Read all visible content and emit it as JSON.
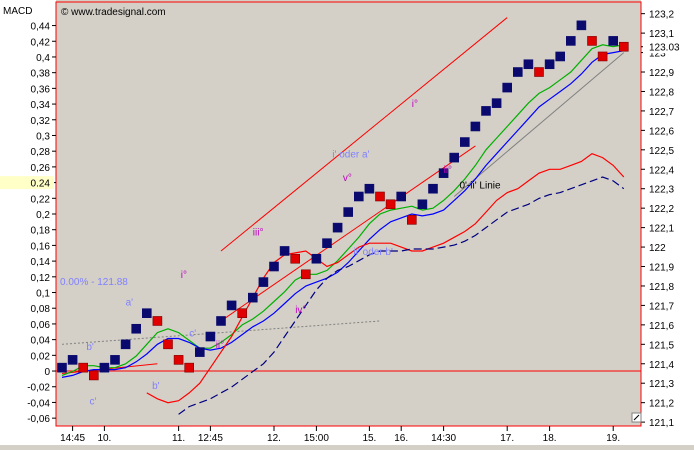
{
  "chart_data": {
    "type": "line",
    "indicator_label": "MACD",
    "copyright": "© www.tradesignal.com",
    "left_axis": {
      "ticks": [
        "0,44",
        "0,42",
        "0,4",
        "0,38",
        "0,36",
        "0,34",
        "0,32",
        "0,3",
        "0,28",
        "0,26",
        "0,24",
        "0,22",
        "0,2",
        "0,18",
        "0,16",
        "0,14",
        "0,12",
        "0,1",
        "0,08",
        "0,06",
        "0,04",
        "0,02",
        "0",
        "-0,02",
        "-0,04",
        "-0,06"
      ],
      "values": [
        0.44,
        0.42,
        0.4,
        0.38,
        0.36,
        0.34,
        0.32,
        0.3,
        0.28,
        0.26,
        0.24,
        0.22,
        0.2,
        0.18,
        0.16,
        0.14,
        0.12,
        0.1,
        0.08,
        0.06,
        0.04,
        0.02,
        0,
        -0.02,
        -0.04,
        -0.06
      ],
      "range": [
        -0.07,
        0.47
      ],
      "current_value": "0.24"
    },
    "right_axis": {
      "ticks": [
        "123,2",
        "123,1",
        "123",
        "122,9",
        "122,8",
        "122,7",
        "122,6",
        "122,5",
        "122,4",
        "122,3",
        "122,2",
        "122,1",
        "122",
        "121,9",
        "121,8",
        "121,7",
        "121,6",
        "121,5",
        "121,4",
        "121,3",
        "121,2",
        "121,1"
      ],
      "values": [
        123.2,
        123.1,
        123.0,
        122.9,
        122.8,
        122.7,
        122.6,
        122.5,
        122.4,
        122.3,
        122.2,
        122.1,
        122.0,
        121.9,
        121.8,
        121.7,
        121.6,
        121.5,
        121.4,
        121.3,
        121.2,
        121.1
      ],
      "range": [
        121.08,
        123.26
      ],
      "current_value": "123.03"
    },
    "x_axis": {
      "ticks": [
        "14:45",
        "10.",
        "11.",
        "12:45",
        "12.",
        "15:00",
        "15.",
        "16.",
        "14:30",
        "17.",
        "18.",
        "19."
      ],
      "positions": [
        1,
        4,
        11,
        14,
        20,
        24,
        29,
        32,
        36,
        42,
        46,
        52
      ]
    },
    "zero_line": 0,
    "label_price": "0.00% - 121.88",
    "bars": [
      {
        "i": 0,
        "open": 121.34,
        "close": 121.38
      },
      {
        "i": 1,
        "open": 121.38,
        "close": 121.42
      },
      {
        "i": 2,
        "open": 121.42,
        "close": 121.38
      },
      {
        "i": 3,
        "open": 121.38,
        "close": 121.34
      },
      {
        "i": 4,
        "open": 121.34,
        "close": 121.38
      },
      {
        "i": 5,
        "open": 121.38,
        "close": 121.42
      },
      {
        "i": 6,
        "open": 121.42,
        "close": 121.5
      },
      {
        "i": 7,
        "open": 121.5,
        "close": 121.58
      },
      {
        "i": 8,
        "open": 121.58,
        "close": 121.66
      },
      {
        "i": 9,
        "open": 121.66,
        "close": 121.62
      },
      {
        "i": 10,
        "open": 121.62,
        "close": 121.5
      },
      {
        "i": 11,
        "open": 121.5,
        "close": 121.42
      },
      {
        "i": 12,
        "open": 121.42,
        "close": 121.38
      },
      {
        "i": 13,
        "open": 121.38,
        "close": 121.46
      },
      {
        "i": 14,
        "open": 121.46,
        "close": 121.54
      },
      {
        "i": 15,
        "open": 121.54,
        "close": 121.62
      },
      {
        "i": 16,
        "open": 121.62,
        "close": 121.7
      },
      {
        "i": 17,
        "open": 121.7,
        "close": 121.66
      },
      {
        "i": 18,
        "open": 121.66,
        "close": 121.74
      },
      {
        "i": 19,
        "open": 121.74,
        "close": 121.82
      },
      {
        "i": 20,
        "open": 121.82,
        "close": 121.9
      },
      {
        "i": 21,
        "open": 121.9,
        "close": 121.98
      },
      {
        "i": 22,
        "open": 121.98,
        "close": 121.94
      },
      {
        "i": 23,
        "open": 121.94,
        "close": 121.86
      },
      {
        "i": 24,
        "open": 121.86,
        "close": 121.94
      },
      {
        "i": 25,
        "open": 121.94,
        "close": 122.02
      },
      {
        "i": 26,
        "open": 122.02,
        "close": 122.1
      },
      {
        "i": 27,
        "open": 122.1,
        "close": 122.18
      },
      {
        "i": 28,
        "open": 122.18,
        "close": 122.26
      },
      {
        "i": 29,
        "open": 122.26,
        "close": 122.3
      },
      {
        "i": 30,
        "open": 122.3,
        "close": 122.26
      },
      {
        "i": 31,
        "open": 122.26,
        "close": 122.22
      },
      {
        "i": 32,
        "open": 122.22,
        "close": 122.26
      },
      {
        "i": 33,
        "open": 122.26,
        "close": 122.14
      },
      {
        "i": 34,
        "open": 122.14,
        "close": 122.22
      },
      {
        "i": 35,
        "open": 122.22,
        "close": 122.3
      },
      {
        "i": 36,
        "open": 122.3,
        "close": 122.38
      },
      {
        "i": 37,
        "open": 122.38,
        "close": 122.46
      },
      {
        "i": 38,
        "open": 122.46,
        "close": 122.54
      },
      {
        "i": 39,
        "open": 122.54,
        "close": 122.62
      },
      {
        "i": 40,
        "open": 122.62,
        "close": 122.7
      },
      {
        "i": 41,
        "open": 122.7,
        "close": 122.74
      },
      {
        "i": 42,
        "open": 122.74,
        "close": 122.82
      },
      {
        "i": 43,
        "open": 122.82,
        "close": 122.9
      },
      {
        "i": 44,
        "open": 122.9,
        "close": 122.94
      },
      {
        "i": 45,
        "open": 122.94,
        "close": 122.9
      },
      {
        "i": 46,
        "open": 122.9,
        "close": 122.94
      },
      {
        "i": 47,
        "open": 122.94,
        "close": 122.98
      },
      {
        "i": 48,
        "open": 122.98,
        "close": 123.06
      },
      {
        "i": 49,
        "open": 123.06,
        "close": 123.14
      },
      {
        "i": 50,
        "open": 123.14,
        "close": 123.06
      },
      {
        "i": 51,
        "open": 123.06,
        "close": 122.98
      },
      {
        "i": 52,
        "open": 122.98,
        "close": 123.06
      },
      {
        "i": 53,
        "open": 123.06,
        "close": 123.03
      }
    ],
    "series": [
      {
        "color": "#00b000",
        "dash": "",
        "y": [
          121.34,
          121.36,
          121.39,
          121.39,
          121.38,
          121.38,
          121.4,
          121.44,
          121.5,
          121.56,
          121.58,
          121.56,
          121.52,
          121.48,
          121.48,
          121.51,
          121.55,
          121.6,
          121.63,
          121.67,
          121.72,
          121.77,
          121.83,
          121.86,
          121.86,
          121.88,
          121.93,
          121.99,
          122.05,
          122.12,
          122.17,
          122.19,
          122.2,
          122.21,
          122.19,
          122.2,
          122.24,
          122.29,
          122.35,
          122.42,
          122.5,
          122.56,
          122.62,
          122.68,
          122.74,
          122.79,
          122.82,
          122.86,
          122.9,
          122.96,
          123.02,
          123.04,
          123.03,
          123.04
        ]
      },
      {
        "color": "#0000ff",
        "dash": "",
        "y": [
          121.33,
          121.34,
          121.36,
          121.37,
          121.37,
          121.37,
          121.38,
          121.41,
          121.45,
          121.5,
          121.53,
          121.53,
          121.51,
          121.48,
          121.47,
          121.48,
          121.51,
          121.55,
          121.59,
          121.62,
          121.66,
          121.71,
          121.76,
          121.8,
          121.82,
          121.84,
          121.87,
          121.92,
          121.98,
          122.04,
          122.09,
          122.13,
          122.15,
          122.17,
          122.16,
          122.17,
          122.19,
          122.24,
          122.29,
          122.35,
          122.42,
          122.48,
          122.54,
          122.6,
          122.66,
          122.72,
          122.76,
          122.8,
          122.84,
          122.89,
          122.95,
          122.99,
          123.0,
          123.01
        ]
      },
      {
        "color": "#ff0000",
        "dash": "",
        "y": [
          null,
          null,
          null,
          null,
          null,
          null,
          null,
          null,
          121.25,
          121.22,
          121.2,
          121.21,
          121.25,
          121.3,
          121.38,
          121.46,
          121.54,
          121.64,
          121.74,
          121.84,
          121.92,
          121.96,
          121.97,
          121.98,
          121.94,
          121.9,
          121.92,
          121.96,
          122.0,
          122.02,
          122.02,
          122.02,
          122.0,
          121.98,
          121.98,
          122.0,
          122.02,
          122.05,
          122.08,
          122.12,
          122.18,
          122.24,
          122.28,
          122.3,
          122.34,
          122.38,
          122.4,
          122.4,
          122.42,
          122.44,
          122.48,
          122.46,
          122.42,
          122.36
        ]
      },
      {
        "color": "#000080",
        "dash": "8 4",
        "y": [
          null,
          null,
          null,
          null,
          null,
          null,
          null,
          null,
          null,
          null,
          null,
          121.14,
          121.18,
          121.2,
          121.22,
          121.25,
          121.28,
          121.32,
          121.36,
          121.4,
          121.46,
          121.54,
          121.62,
          121.7,
          121.78,
          121.84,
          121.88,
          121.9,
          121.93,
          121.96,
          121.98,
          121.98,
          121.98,
          121.99,
          121.99,
          121.99,
          122.0,
          122.01,
          122.03,
          122.06,
          122.1,
          122.14,
          122.18,
          122.2,
          122.22,
          122.25,
          122.27,
          122.28,
          122.3,
          122.32,
          122.34,
          122.36,
          122.34,
          122.3
        ]
      }
    ],
    "lines": [
      {
        "color": "#ff0000",
        "from": [
          15,
          121.98
        ],
        "to": [
          42,
          123.18
        ]
      },
      {
        "color": "#ff0000",
        "from": [
          15,
          121.62
        ],
        "to": [
          39,
          122.52
        ]
      },
      {
        "color": "#808080",
        "from": [
          37,
          122.26
        ],
        "to": [
          53,
          123.0
        ]
      },
      {
        "color": "#808080",
        "dash": "2 2",
        "from": [
          0,
          121.5
        ],
        "to": [
          30,
          121.62
        ]
      },
      {
        "color": "#ff0000",
        "from": [
          0,
          121.35
        ],
        "to": [
          9,
          121.4
        ]
      }
    ],
    "annotations": [
      {
        "text": "iii°",
        "color": "#c000c0",
        "x": 46.5,
        "y": 123.28
      },
      {
        "text": "i°",
        "color": "#c000c0",
        "x": 33.0,
        "y": 122.72
      },
      {
        "text": "i' oder a'",
        "color": "#8080ff",
        "x": 25.5,
        "y": 122.46
      },
      {
        "text": "v°",
        "color": "#c000c0",
        "x": 26.5,
        "y": 122.34
      },
      {
        "text": "ii°",
        "color": "#c000c0",
        "x": 36.0,
        "y": 122.38
      },
      {
        "text": "0'-ii' Linie",
        "color": "#000000",
        "x": 37.5,
        "y": 122.3
      },
      {
        "text": "iii°",
        "color": "#c000c0",
        "x": 18.0,
        "y": 122.06
      },
      {
        "text": "ii' oder b'",
        "color": "#8080ff",
        "x": 27.5,
        "y": 121.96
      },
      {
        "text": "i°",
        "color": "#c000c0",
        "x": 11.2,
        "y": 121.84
      },
      {
        "text": "iv°",
        "color": "#c000c0",
        "x": 22.0,
        "y": 121.66
      },
      {
        "text": "a'",
        "color": "#8080ff",
        "x": 6.0,
        "y": 121.7
      },
      {
        "text": "c'",
        "color": "#8080ff",
        "x": 12.0,
        "y": 121.54
      },
      {
        "text": "ii°",
        "color": "#c000c0",
        "x": 14.5,
        "y": 121.48
      },
      {
        "text": "b'",
        "color": "#8080ff",
        "x": 2.3,
        "y": 121.47
      },
      {
        "text": "b'",
        "color": "#8080ff",
        "x": 8.5,
        "y": 121.27
      },
      {
        "text": "c'",
        "color": "#8080ff",
        "x": 2.6,
        "y": 121.19
      }
    ]
  }
}
